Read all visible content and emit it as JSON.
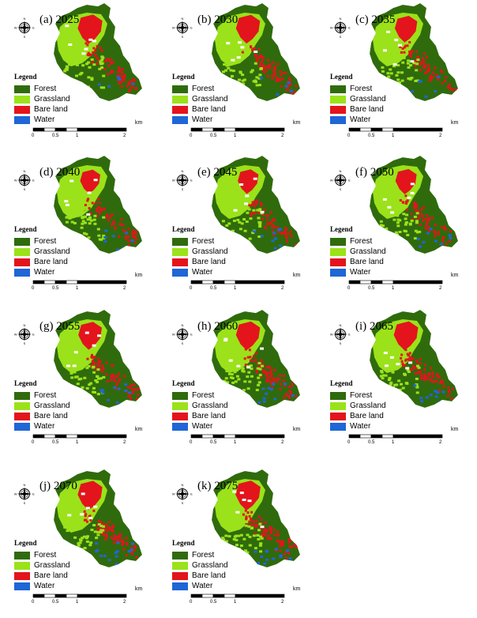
{
  "legend": {
    "title": "Legend",
    "items": [
      {
        "label": "Forest",
        "color": "#2f6b0c"
      },
      {
        "label": "Grassland",
        "color": "#9be21a"
      },
      {
        "label": "Bare land",
        "color": "#e3141c"
      },
      {
        "label": "Water",
        "color": "#1f66d6"
      }
    ]
  },
  "compass": {
    "n": "N",
    "s": "S",
    "e": "E",
    "w": "W"
  },
  "scale": {
    "labels": [
      "0",
      "0.5",
      "1",
      "2"
    ],
    "unit": "km"
  },
  "panels": [
    {
      "title": "(a) 2025",
      "bare": 0.95,
      "water": 0.15
    },
    {
      "title": "(b) 2030",
      "bare": 0.9,
      "water": 0.15
    },
    {
      "title": "(c) 2035",
      "bare": 0.75,
      "water": 0.2
    },
    {
      "title": "(d) 2040",
      "bare": 0.55,
      "water": 0.35
    },
    {
      "title": "(e) 2045",
      "bare": 0.6,
      "water": 0.4
    },
    {
      "title": "(f) 2050",
      "bare": 0.65,
      "water": 0.45
    },
    {
      "title": "(g) 2055",
      "bare": 0.85,
      "water": 0.6
    },
    {
      "title": "(h) 2060",
      "bare": 0.9,
      "water": 0.65
    },
    {
      "title": "(i) 2065",
      "bare": 0.92,
      "water": 0.7
    },
    {
      "title": "(j) 2070",
      "bare": 0.95,
      "water": 0.75
    },
    {
      "title": "(k) 2075",
      "bare": 0.98,
      "water": 0.8
    }
  ]
}
